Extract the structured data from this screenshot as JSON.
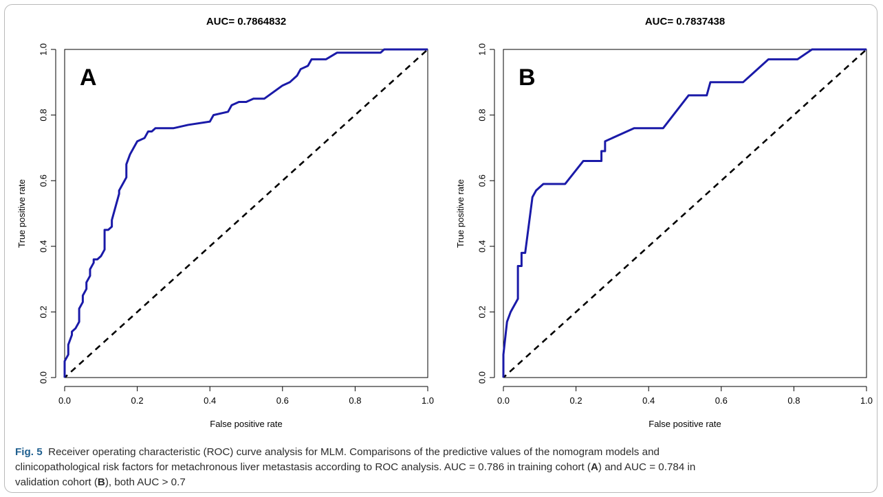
{
  "chart_data": [
    {
      "type": "line",
      "title": "AUC= 0.7864832",
      "panel_label": "A",
      "xlabel": "False positive rate",
      "ylabel": "True positive rate",
      "xlim": [
        0,
        1
      ],
      "ylim": [
        0,
        1
      ],
      "xticks": [
        "0.0",
        "0.2",
        "0.4",
        "0.6",
        "0.8",
        "1.0"
      ],
      "yticks": [
        "0.0",
        "0.2",
        "0.4",
        "0.6",
        "0.8",
        "1.0"
      ],
      "grid": false,
      "colors": {
        "roc": "#1a1aa8",
        "diagonal": "#000000"
      },
      "series": [
        {
          "x": [
            0,
            0,
            0.01,
            0.01,
            0.02,
            0.02,
            0.03,
            0.04,
            0.04,
            0.05,
            0.05,
            0.06,
            0.06,
            0.07,
            0.07,
            0.08,
            0.08,
            0.09,
            0.1,
            0.11,
            0.11,
            0.12,
            0.13,
            0.13,
            0.14,
            0.15,
            0.15,
            0.16,
            0.17,
            0.17,
            0.18,
            0.19,
            0.2,
            0.22,
            0.23,
            0.24,
            0.25,
            0.27,
            0.3,
            0.34,
            0.4,
            0.41,
            0.45,
            0.46,
            0.48,
            0.5,
            0.52,
            0.55,
            0.6,
            0.62,
            0.64,
            0.65,
            0.67,
            0.68,
            0.72,
            0.75,
            0.87,
            0.88,
            1.0
          ],
          "y": [
            0,
            0.05,
            0.07,
            0.1,
            0.13,
            0.14,
            0.15,
            0.17,
            0.21,
            0.23,
            0.25,
            0.27,
            0.29,
            0.31,
            0.33,
            0.35,
            0.36,
            0.36,
            0.37,
            0.39,
            0.45,
            0.45,
            0.46,
            0.48,
            0.52,
            0.56,
            0.57,
            0.59,
            0.61,
            0.65,
            0.68,
            0.7,
            0.72,
            0.73,
            0.75,
            0.75,
            0.76,
            0.76,
            0.76,
            0.77,
            0.78,
            0.8,
            0.81,
            0.83,
            0.84,
            0.84,
            0.85,
            0.85,
            0.89,
            0.9,
            0.92,
            0.94,
            0.95,
            0.97,
            0.97,
            0.99,
            0.99,
            1.0,
            1.0
          ]
        }
      ]
    },
    {
      "type": "line",
      "title": "AUC= 0.7837438",
      "panel_label": "B",
      "xlabel": "False positive rate",
      "ylabel": "True positive rate",
      "xlim": [
        0,
        1
      ],
      "ylim": [
        0,
        1
      ],
      "xticks": [
        "0.0",
        "0.2",
        "0.4",
        "0.6",
        "0.8",
        "1.0"
      ],
      "yticks": [
        "0.0",
        "0.2",
        "0.4",
        "0.6",
        "0.8",
        "1.0"
      ],
      "grid": false,
      "colors": {
        "roc": "#1a1aa8",
        "diagonal": "#000000"
      },
      "series": [
        {
          "x": [
            0,
            0,
            0.01,
            0.02,
            0.04,
            0.04,
            0.05,
            0.05,
            0.06,
            0.08,
            0.09,
            0.11,
            0.17,
            0.22,
            0.27,
            0.27,
            0.28,
            0.28,
            0.36,
            0.44,
            0.51,
            0.56,
            0.57,
            0.62,
            0.66,
            0.69,
            0.73,
            0.81,
            0.85,
            1.0
          ],
          "y": [
            0,
            0.07,
            0.17,
            0.2,
            0.24,
            0.34,
            0.34,
            0.38,
            0.38,
            0.55,
            0.57,
            0.59,
            0.59,
            0.66,
            0.66,
            0.69,
            0.69,
            0.72,
            0.76,
            0.76,
            0.86,
            0.86,
            0.9,
            0.9,
            0.9,
            0.93,
            0.97,
            0.97,
            1.0,
            1.0
          ]
        }
      ]
    }
  ],
  "caption": {
    "fig_label": "Fig. 5",
    "line1": "Receiver operating characteristic (ROC) curve analysis for MLM. Comparisons of the predictive values of the nomogram models and",
    "line2a": "clinicopathological risk factors for metachronous liver metastasis according to ROC analysis. AUC = 0.786 in training cohort (",
    "bold_a": "A",
    "line2b": ") and AUC = 0.784 in",
    "line3a": "validation cohort (",
    "bold_b": "B",
    "line3b": "), both AUC > 0.7"
  }
}
